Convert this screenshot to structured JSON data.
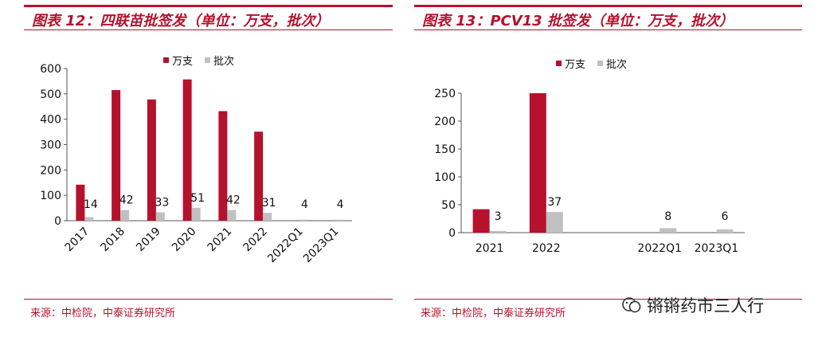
{
  "charts": {
    "left": {
      "title": "图表 12：四联苗批签发（单位：万支，批次）",
      "source": "来源：中检院，中泰证券研究所"
    },
    "right": {
      "title": "图表 13：PCV13 批签发（单位：万支，批次）",
      "source": "来源：中检院，中泰证券研究所"
    }
  },
  "watermark": {
    "text": "锵锵药市三人行",
    "icon": "wechat-official-account-icon"
  },
  "colors": {
    "accent": "#b5122e",
    "series1": "#b5122e",
    "series2": "#c0c0c0"
  },
  "chart_data": [
    {
      "type": "bar",
      "title": "图表 12：四联苗批签发（单位：万支，批次）",
      "categories": [
        "2017",
        "2018",
        "2019",
        "2020",
        "2021",
        "2022",
        "2022Q1",
        "2023Q1"
      ],
      "series": [
        {
          "name": "万支",
          "values": [
            142,
            515,
            478,
            557,
            432,
            351,
            0,
            0
          ]
        },
        {
          "name": "批次",
          "values": [
            14,
            42,
            33,
            51,
            42,
            31,
            4,
            4
          ],
          "labels": [
            "14",
            "42",
            "33",
            "51",
            "42",
            "31",
            "4",
            "4"
          ]
        }
      ],
      "ylim": [
        0,
        600
      ],
      "yticks": [
        0,
        100,
        200,
        300,
        400,
        500,
        600
      ],
      "xlabel": "",
      "ylabel": "",
      "legend": "top-center",
      "grid": false,
      "xtick_rotation": "45"
    },
    {
      "type": "bar",
      "title": "图表 13：PCV13 批签发（单位：万支，批次）",
      "categories": [
        "2021",
        "2022",
        "",
        "2022Q1",
        "2023Q1"
      ],
      "series": [
        {
          "name": "万支",
          "values": [
            42,
            250,
            0,
            0,
            0
          ]
        },
        {
          "name": "批次",
          "values": [
            3,
            37,
            0,
            8,
            6
          ],
          "labels": [
            "3",
            "37",
            "",
            "8",
            "6"
          ]
        }
      ],
      "ylim": [
        0,
        250
      ],
      "yticks": [
        0,
        50,
        100,
        150,
        200,
        250
      ],
      "xlabel": "",
      "ylabel": "",
      "legend": "top-center",
      "grid": false,
      "xtick_rotation": "0"
    }
  ]
}
